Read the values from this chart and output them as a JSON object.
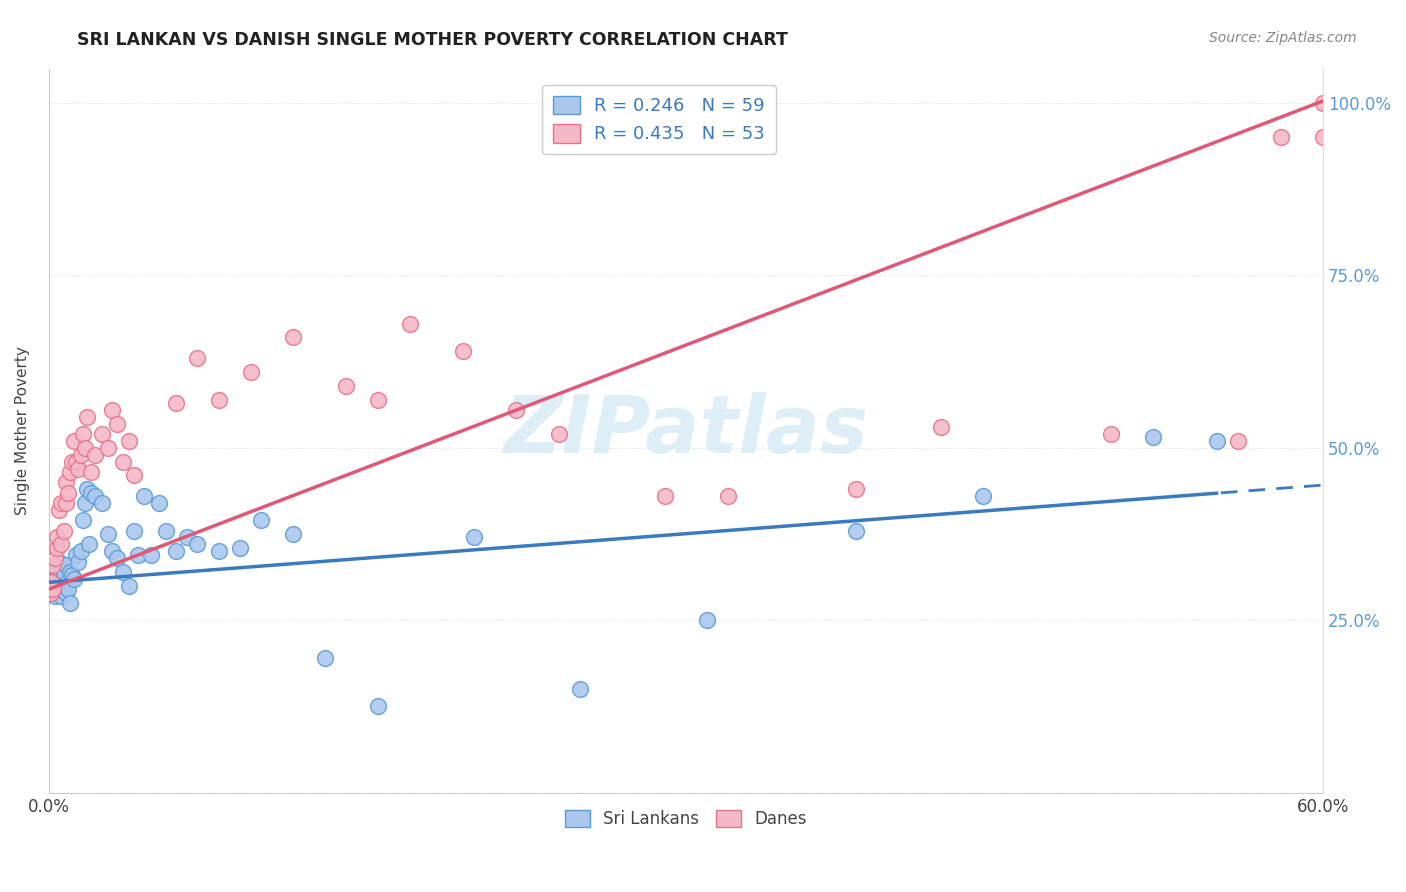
{
  "title": "SRI LANKAN VS DANISH SINGLE MOTHER POVERTY CORRELATION CHART",
  "source": "Source: ZipAtlas.com",
  "ylabel": "Single Mother Poverty",
  "yticks": [
    0.0,
    0.25,
    0.5,
    0.75,
    1.0
  ],
  "ytick_labels": [
    "",
    "25.0%",
    "50.0%",
    "75.0%",
    "100.0%"
  ],
  "xtick_left_label": "0.0%",
  "xtick_right_label": "60.0%",
  "xmin": 0.0,
  "xmax": 0.6,
  "ymin": 0.0,
  "ymax": 1.05,
  "sri_lanka_fill_color": "#aac8ee",
  "danes_fill_color": "#f4b8c8",
  "sri_lanka_edge_color": "#5b9bd5",
  "danes_edge_color": "#e8728a",
  "sri_lanka_trend_color": "#3a7abf",
  "danes_trend_color": "#e05878",
  "watermark_color": "#d0e8f5",
  "text_color": "#444444",
  "grid_color": "#dddddd",
  "right_axis_color": "#5b9bd5",
  "sri_lanka_R": 0.246,
  "sri_lanka_N": 59,
  "danes_R": 0.435,
  "danes_N": 53,
  "legend_label_1": "Sri Lankans",
  "legend_label_2": "Danes",
  "sri_lanka_trend_intercept": 0.305,
  "sri_lanka_trend_slope": 0.235,
  "danes_trend_intercept": 0.295,
  "danes_trend_slope": 1.18,
  "sri_lanka_trend_solid_end": 0.55,
  "sri_lanka_x": [
    0.001,
    0.001,
    0.002,
    0.002,
    0.003,
    0.003,
    0.004,
    0.004,
    0.005,
    0.005,
    0.006,
    0.006,
    0.007,
    0.007,
    0.008,
    0.008,
    0.009,
    0.009,
    0.01,
    0.01,
    0.011,
    0.012,
    0.013,
    0.014,
    0.015,
    0.016,
    0.017,
    0.018,
    0.019,
    0.02,
    0.022,
    0.025,
    0.028,
    0.03,
    0.032,
    0.035,
    0.038,
    0.04,
    0.042,
    0.045,
    0.048,
    0.052,
    0.055,
    0.06,
    0.065,
    0.07,
    0.08,
    0.09,
    0.1,
    0.115,
    0.13,
    0.155,
    0.2,
    0.25,
    0.31,
    0.38,
    0.44,
    0.52,
    0.55
  ],
  "sri_lanka_y": [
    0.305,
    0.295,
    0.32,
    0.29,
    0.31,
    0.285,
    0.31,
    0.325,
    0.295,
    0.335,
    0.305,
    0.285,
    0.32,
    0.3,
    0.29,
    0.33,
    0.305,
    0.295,
    0.275,
    0.32,
    0.315,
    0.31,
    0.345,
    0.335,
    0.35,
    0.395,
    0.42,
    0.44,
    0.36,
    0.435,
    0.43,
    0.42,
    0.375,
    0.35,
    0.34,
    0.32,
    0.3,
    0.38,
    0.345,
    0.43,
    0.345,
    0.42,
    0.38,
    0.35,
    0.37,
    0.36,
    0.35,
    0.355,
    0.395,
    0.375,
    0.195,
    0.125,
    0.37,
    0.15,
    0.25,
    0.38,
    0.43,
    0.515,
    0.51
  ],
  "danes_x": [
    0.001,
    0.001,
    0.001,
    0.002,
    0.002,
    0.003,
    0.004,
    0.004,
    0.005,
    0.006,
    0.006,
    0.007,
    0.008,
    0.008,
    0.009,
    0.01,
    0.011,
    0.012,
    0.013,
    0.014,
    0.015,
    0.016,
    0.017,
    0.018,
    0.02,
    0.022,
    0.025,
    0.028,
    0.03,
    0.032,
    0.035,
    0.038,
    0.04,
    0.06,
    0.07,
    0.08,
    0.095,
    0.115,
    0.14,
    0.155,
    0.17,
    0.195,
    0.22,
    0.24,
    0.29,
    0.32,
    0.38,
    0.42,
    0.5,
    0.56,
    0.58,
    0.6,
    0.6
  ],
  "danes_y": [
    0.305,
    0.29,
    0.295,
    0.33,
    0.295,
    0.34,
    0.355,
    0.37,
    0.41,
    0.36,
    0.42,
    0.38,
    0.42,
    0.45,
    0.435,
    0.465,
    0.48,
    0.51,
    0.48,
    0.47,
    0.49,
    0.52,
    0.5,
    0.545,
    0.465,
    0.49,
    0.52,
    0.5,
    0.555,
    0.535,
    0.48,
    0.51,
    0.46,
    0.565,
    0.63,
    0.57,
    0.61,
    0.66,
    0.59,
    0.57,
    0.68,
    0.64,
    0.555,
    0.52,
    0.43,
    0.43,
    0.44,
    0.53,
    0.52,
    0.51,
    0.95,
    1.0,
    0.95
  ]
}
